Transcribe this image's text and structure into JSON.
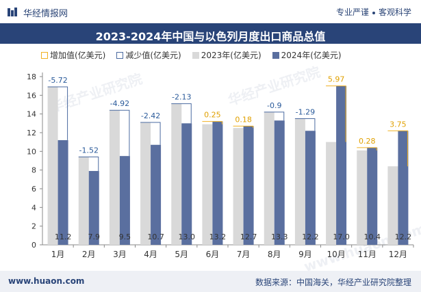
{
  "header": {
    "brand": "华经情报网",
    "tagline_left": "专业严谨",
    "tagline_right": "客观科学"
  },
  "footer": {
    "website": "www.huaon.com",
    "source": "数据来源：中国海关，华经产业研究院整理"
  },
  "watermarks": [
    "华经产业研究院",
    "www.huaon.com"
  ],
  "colors": {
    "title_bg": "#294478",
    "bar_2023": "#d9d9d9",
    "bar_2024": "#5a6f9f",
    "increase": "#f0b020",
    "decrease": "#4a6aa0"
  },
  "chart_data": {
    "type": "bar",
    "title": "2023-2024年中国与以色列月度出口商品总值",
    "legend": [
      "增加值(亿美元)",
      "减少值(亿美元)",
      "2023年(亿美元)",
      "2024年(亿美元)"
    ],
    "categories": [
      "1月",
      "2月",
      "3月",
      "4月",
      "5月",
      "6月",
      "7月",
      "8月",
      "9月",
      "10月",
      "11月",
      "12月"
    ],
    "series": [
      {
        "name": "2023年(亿美元)",
        "values": [
          16.9,
          9.4,
          14.4,
          13.1,
          15.1,
          12.9,
          12.5,
          14.2,
          13.5,
          11.0,
          10.1,
          8.4
        ]
      },
      {
        "name": "2024年(亿美元)",
        "values": [
          11.2,
          7.9,
          9.5,
          10.7,
          13.0,
          13.2,
          12.7,
          13.3,
          12.2,
          17.0,
          10.4,
          12.2
        ]
      }
    ],
    "change_labels": [
      "-5.72",
      "-1.52",
      "-4.92",
      "-2.42",
      "-2.13",
      "0.25",
      "0.18",
      "-0.9",
      "-1.29",
      "5.97",
      "0.28",
      "3.75"
    ],
    "value_labels": [
      "11.2",
      "7.9",
      "9.5",
      "10.7",
      "13.0",
      "13.2",
      "12.7",
      "13.3",
      "12.2",
      "17.0",
      "10.4",
      "12.2"
    ],
    "yticks": [
      "0",
      "2",
      "4",
      "6",
      "8",
      "10",
      "12",
      "14",
      "16",
      "18"
    ],
    "ylim": [
      0,
      18
    ],
    "xlabel": "",
    "ylabel": ""
  }
}
